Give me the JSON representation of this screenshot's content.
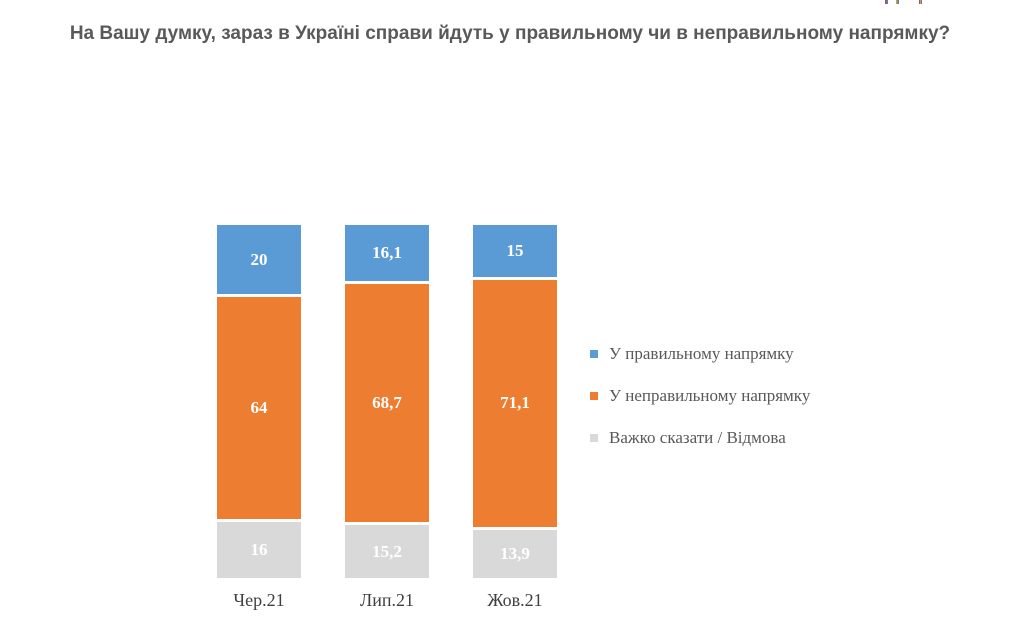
{
  "page": {
    "background": "#ffffff"
  },
  "chart_data": {
    "type": "bar",
    "subtype": "stacked-vertical",
    "title": "На Вашу думку, зараз в Україні справи йдуть у правильному чи в неправильному напрямку?",
    "title_color": "#595959",
    "categories": [
      "Чер.21",
      "Лип.21",
      "Жов.21"
    ],
    "series": [
      {
        "name": "У правильному напрямку",
        "color": "#5B9BD5",
        "values": [
          20,
          16.1,
          15
        ],
        "labels": [
          "20",
          "16,1",
          "15"
        ]
      },
      {
        "name": "У неправильному напрямку",
        "color": "#ED7D31",
        "values": [
          64,
          68.7,
          71.1
        ],
        "labels": [
          "64",
          "68,7",
          "71,1"
        ]
      },
      {
        "name": "Важко сказати / Відмова",
        "color": "#D9D9D9",
        "values": [
          16,
          15.2,
          13.9
        ],
        "labels": [
          "16",
          "15,2",
          "13,9"
        ]
      }
    ],
    "stack_total": 100,
    "value_label_color": "#FFFFFF",
    "legend_position": "right",
    "legend_text_color": "#595959",
    "grid": false,
    "axes": {
      "y_axis_visible": false,
      "x_tick_color": "#3F3F3F"
    }
  },
  "decor": {
    "top_right_artifact_colors": [
      "#B0504A",
      "#D89C3C",
      "#4F81BD"
    ]
  }
}
